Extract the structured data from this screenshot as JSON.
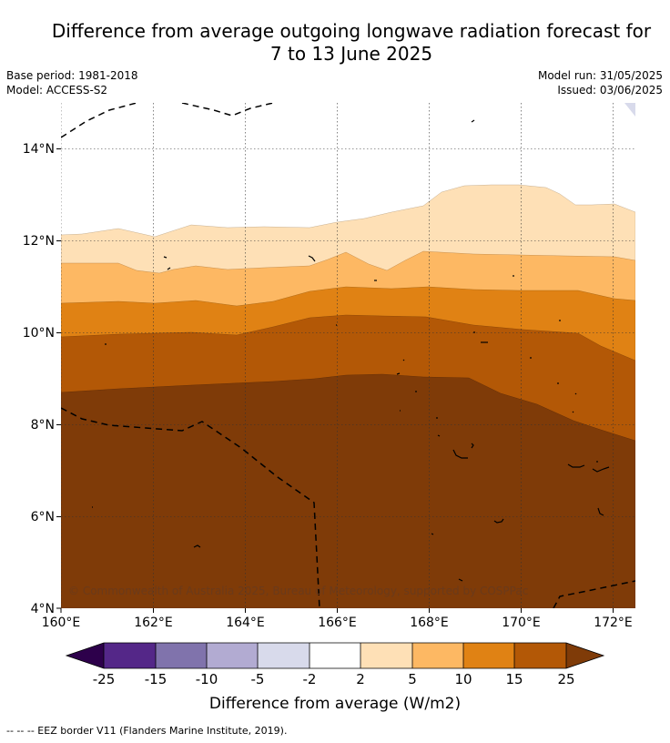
{
  "title_line1": "Difference from average outgoing longwave radiation forecast for",
  "title_line2": "7 to 13 June 2025",
  "base_period": "Base period: 1981-2018",
  "model": "Model: ACCESS-S2",
  "model_run": "Model run: 31/05/2025",
  "issued": "Issued: 03/06/2025",
  "copyright": "© Commonwealth of Australia 2025, Bureau of Meteorology, supported by COSPPac",
  "map": {
    "lon_ticks": [
      "160°E",
      "162°E",
      "164°E",
      "166°E",
      "168°E",
      "170°E",
      "172°E"
    ],
    "lat_ticks": [
      "14°N",
      "12°N",
      "10°N",
      "8°N",
      "6°N",
      "4°N"
    ]
  },
  "colorbar": {
    "label": "Difference from average (W/m2)",
    "ticks": [
      "-25",
      "-15",
      "-10",
      "-5",
      "-2",
      "2",
      "5",
      "10",
      "15",
      "25"
    ],
    "colors": [
      "#2d004b",
      "#542788",
      "#8073ac",
      "#b2abd2",
      "#d8daeb",
      "#ffffff",
      "#fee0b6",
      "#fdb863",
      "#e08214",
      "#b35806",
      "#7f3b08"
    ]
  },
  "legend_note": "--  --  -- EEZ border V11 (Flanders Marine Institute, 2019)."
}
